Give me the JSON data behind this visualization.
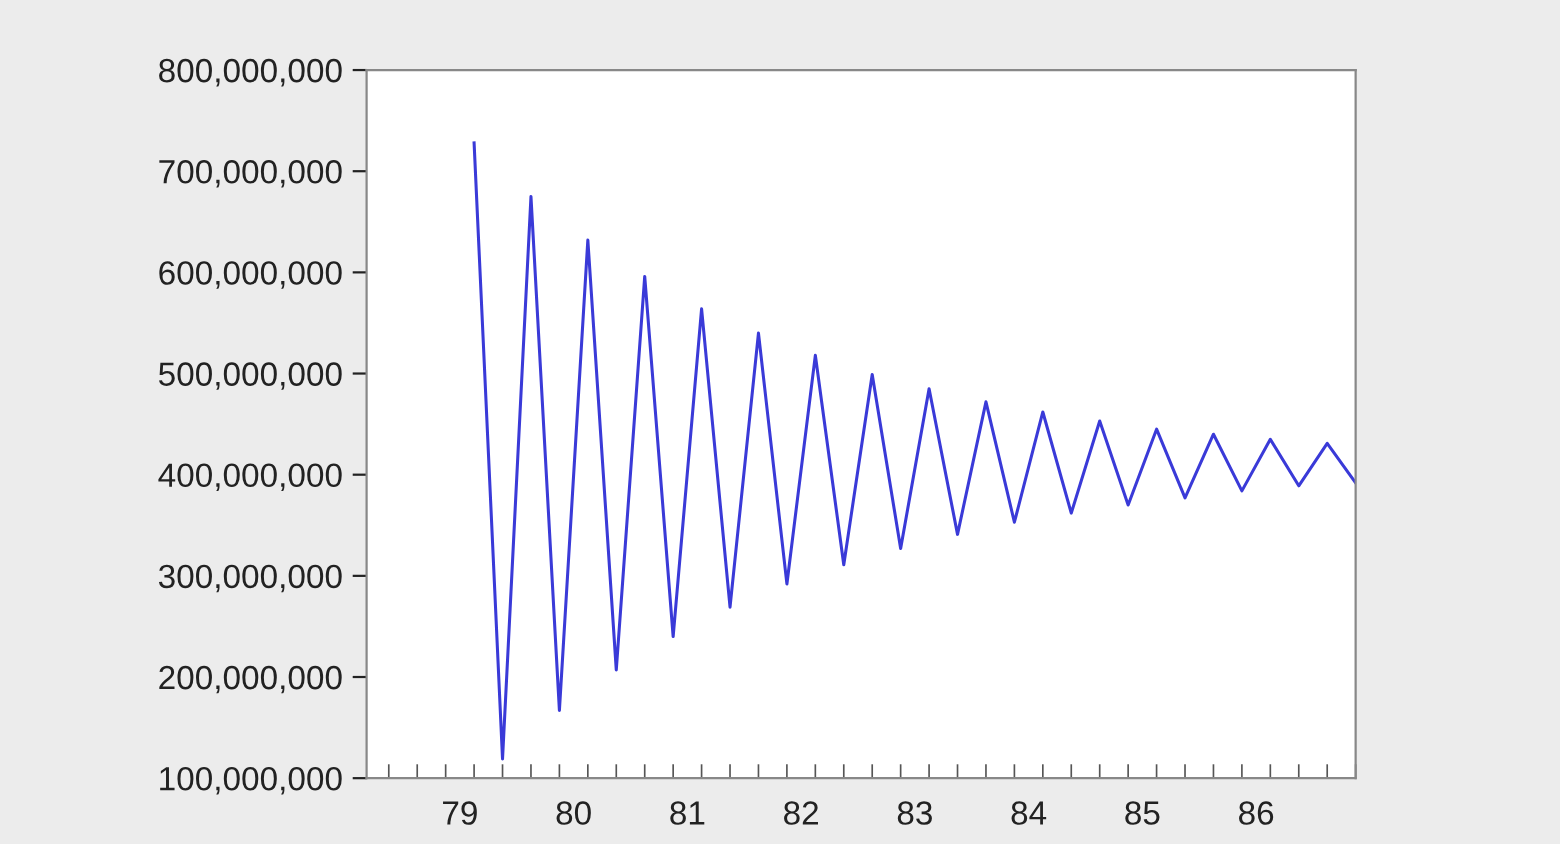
{
  "chart_data": {
    "type": "line",
    "x": [
      79.125,
      79.375,
      79.625,
      79.875,
      80.125,
      80.375,
      80.625,
      80.875,
      81.125,
      81.375,
      81.625,
      81.875,
      82.125,
      82.375,
      82.625,
      82.875,
      83.125,
      83.375,
      83.625,
      83.875,
      84.125,
      84.375,
      84.625,
      84.875,
      85.125,
      85.375,
      85.625,
      85.875,
      86.125,
      86.375,
      86.625,
      86.875
    ],
    "series": [
      {
        "color": "#3a3ad8",
        "values": [
          728000000,
          119000000,
          675000000,
          167000000,
          632000000,
          207000000,
          596000000,
          240000000,
          564000000,
          269000000,
          540000000,
          292000000,
          518000000,
          311000000,
          499000000,
          327000000,
          485000000,
          341000000,
          472000000,
          353000000,
          462000000,
          362000000,
          453000000,
          370000000,
          445000000,
          377000000,
          440000000,
          384000000,
          435000000,
          389000000,
          431000000,
          392000000
        ]
      }
    ],
    "xlim": [
      78.18,
      86.875
    ],
    "xticks": [
      {
        "value": 78.375,
        "label": null
      },
      {
        "value": 78.625,
        "label": null
      },
      {
        "value": 78.875,
        "label": null
      },
      {
        "value": 79,
        "label": "79"
      },
      {
        "value": 79.125,
        "label": null
      },
      {
        "value": 79.375,
        "label": null
      },
      {
        "value": 79.625,
        "label": null
      },
      {
        "value": 79.875,
        "label": null
      },
      {
        "value": 80,
        "label": "80"
      },
      {
        "value": 80.125,
        "label": null
      },
      {
        "value": 80.375,
        "label": null
      },
      {
        "value": 80.625,
        "label": null
      },
      {
        "value": 80.875,
        "label": null
      },
      {
        "value": 81,
        "label": "81"
      },
      {
        "value": 81.125,
        "label": null
      },
      {
        "value": 81.375,
        "label": null
      },
      {
        "value": 81.625,
        "label": null
      },
      {
        "value": 81.875,
        "label": null
      },
      {
        "value": 82,
        "label": "82"
      },
      {
        "value": 82.125,
        "label": null
      },
      {
        "value": 82.375,
        "label": null
      },
      {
        "value": 82.625,
        "label": null
      },
      {
        "value": 82.875,
        "label": null
      },
      {
        "value": 83,
        "label": "83"
      },
      {
        "value": 83.125,
        "label": null
      },
      {
        "value": 83.375,
        "label": null
      },
      {
        "value": 83.625,
        "label": null
      },
      {
        "value": 83.875,
        "label": null
      },
      {
        "value": 84,
        "label": "84"
      },
      {
        "value": 84.125,
        "label": null
      },
      {
        "value": 84.375,
        "label": null
      },
      {
        "value": 84.625,
        "label": null
      },
      {
        "value": 84.875,
        "label": null
      },
      {
        "value": 85,
        "label": "85"
      },
      {
        "value": 85.125,
        "label": null
      },
      {
        "value": 85.375,
        "label": null
      },
      {
        "value": 85.625,
        "label": null
      },
      {
        "value": 85.875,
        "label": null
      },
      {
        "value": 86,
        "label": "86"
      },
      {
        "value": 86.125,
        "label": null
      },
      {
        "value": 86.375,
        "label": null
      },
      {
        "value": 86.625,
        "label": null
      },
      {
        "value": 86.875,
        "label": null
      }
    ],
    "ylim": [
      100000000,
      800000000
    ],
    "yticks": [
      {
        "value": 100000000,
        "label": "100,000,000"
      },
      {
        "value": 200000000,
        "label": "200,000,000"
      },
      {
        "value": 300000000,
        "label": "300,000,000"
      },
      {
        "value": 400000000,
        "label": "400,000,000"
      },
      {
        "value": 500000000,
        "label": "500,000,000"
      },
      {
        "value": 600000000,
        "label": "600,000,000"
      },
      {
        "value": 700000000,
        "label": "700,000,000"
      },
      {
        "value": 800000000,
        "label": "800,000,000"
      }
    ],
    "grid": false,
    "legend": false,
    "marker": "none",
    "line_style": "solid"
  }
}
